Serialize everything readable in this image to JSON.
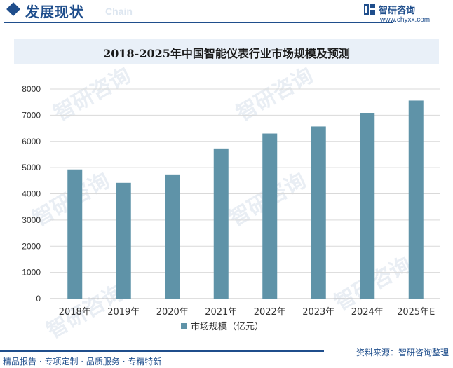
{
  "header": {
    "section_title": "发展现状",
    "section_subtitle": "Chain",
    "brand_name": "智研咨询",
    "brand_url": "www.chyxx.com",
    "accent_color": "#1f4e8c"
  },
  "watermark": {
    "text": "智研咨询"
  },
  "footer": {
    "services": "精品报告 · 专项定制 · 品质服务 · 专精特新",
    "source": "资料来源：智研咨询整理"
  },
  "chart_data": {
    "type": "bar",
    "title": "2018-2025年中国智能仪表行业市场规模及预测",
    "categories": [
      "2018年",
      "2019年",
      "2020年",
      "2021年",
      "2022年",
      "2023年",
      "2024年",
      "2025年E"
    ],
    "series": [
      {
        "name": "市场规模（亿元）",
        "values": [
          4930,
          4420,
          4740,
          5730,
          6300,
          6570,
          7090,
          7560
        ],
        "color": "#5f93a8"
      }
    ],
    "xlabel": "",
    "ylabel": "",
    "ylim": [
      0,
      8000
    ],
    "yticks": [
      0,
      1000,
      2000,
      3000,
      4000,
      5000,
      6000,
      7000,
      8000
    ],
    "grid": true,
    "legend_position": "bottom"
  }
}
